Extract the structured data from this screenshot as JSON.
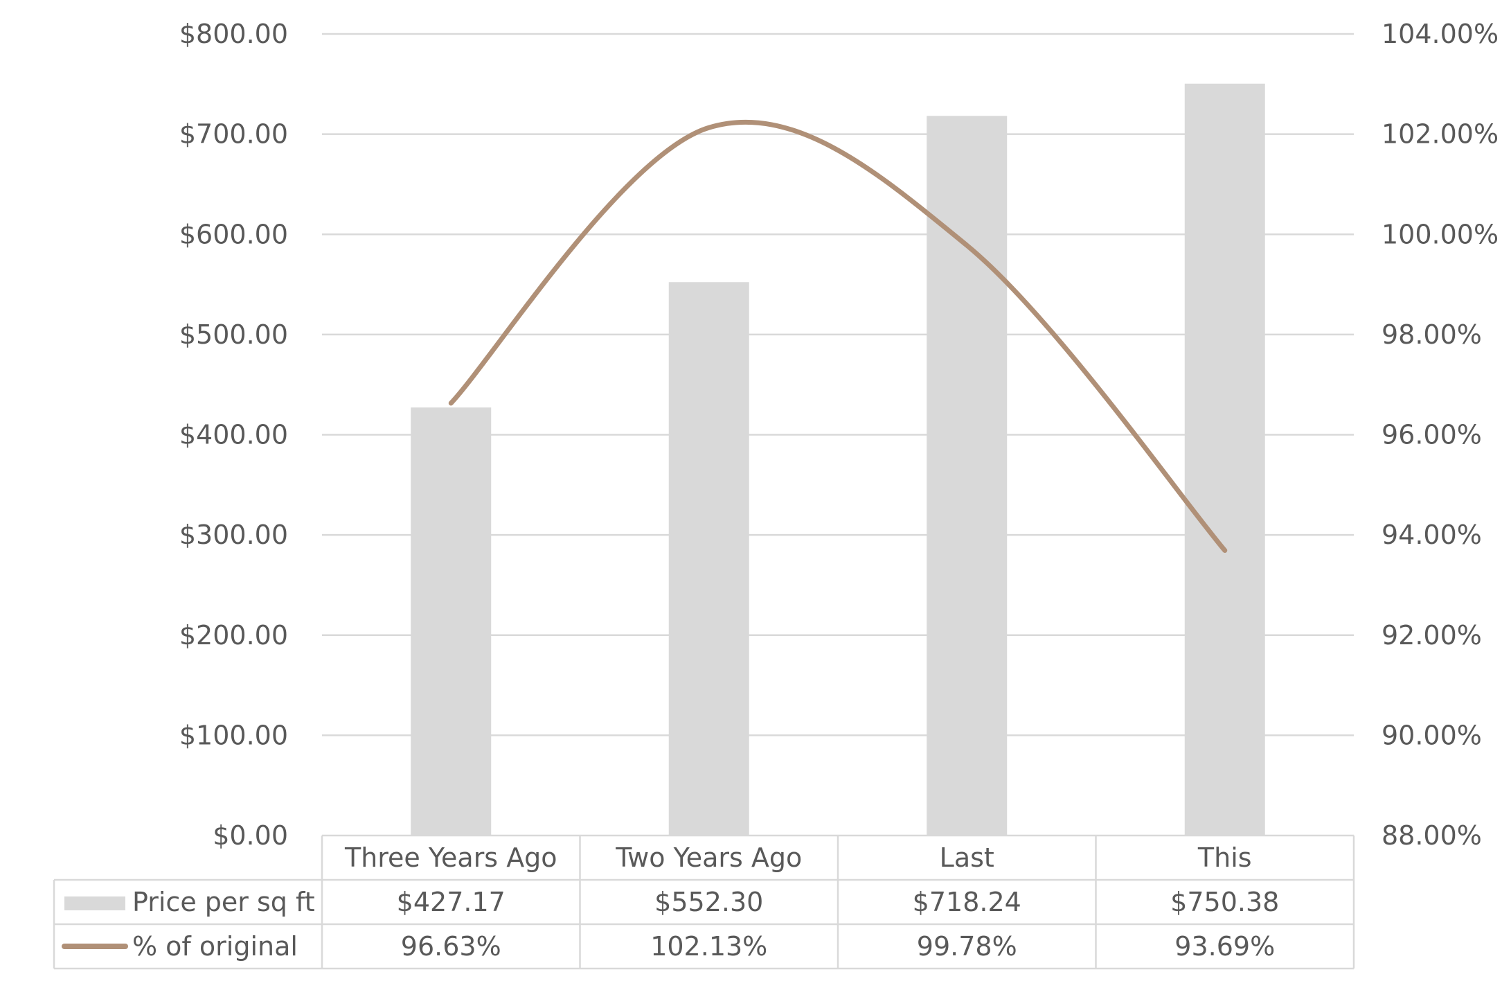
{
  "chart_data": {
    "type": "bar",
    "title": "",
    "categories": [
      "Three Years Ago",
      "Two Years Ago",
      "Last",
      "This"
    ],
    "series": [
      {
        "name": "Price per sq ft",
        "type": "bar",
        "axis": "left",
        "values": [
          427.17,
          552.3,
          718.24,
          750.38
        ],
        "labels": [
          "$427.17",
          "$552.30",
          "$718.24",
          "$750.38"
        ],
        "color": "#d9d9d9"
      },
      {
        "name": "% of original",
        "type": "line",
        "smooth": true,
        "axis": "right",
        "values": [
          96.63,
          102.13,
          99.78,
          93.69
        ],
        "labels": [
          "96.63%",
          "102.13%",
          "99.78%",
          "93.69%"
        ],
        "color": "#b09077"
      }
    ],
    "y_left": {
      "lim": [
        0,
        800
      ],
      "ticks": [
        "$0.00",
        "$100.00",
        "$200.00",
        "$300.00",
        "$400.00",
        "$500.00",
        "$600.00",
        "$700.00",
        "$800.00"
      ]
    },
    "y_right": {
      "lim": [
        88,
        104
      ],
      "ticks": [
        "88.00%",
        "90.00%",
        "92.00%",
        "94.00%",
        "96.00%",
        "98.00%",
        "100.00%",
        "102.00%",
        "104.00%"
      ]
    },
    "grid": true,
    "legend": "data-table"
  }
}
